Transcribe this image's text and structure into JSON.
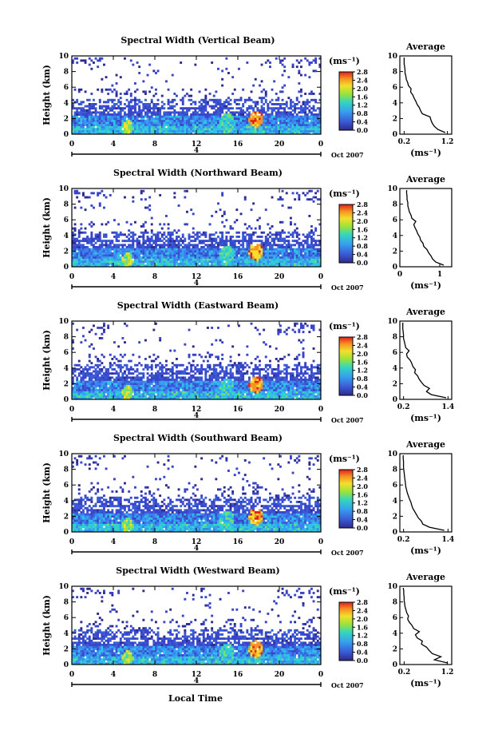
{
  "xlabel": "Local Time",
  "date_label": "Oct 2007",
  "unit_label": "(ms⁻¹)",
  "chart_data": [
    {
      "type": "heatmap",
      "title": "Spectral Width (Vertical Beam)",
      "ylabel": "Height (km)",
      "xlabel": "Local Time",
      "x_ticks": [
        "0",
        "4",
        "8",
        "12",
        "16",
        "20",
        "0"
      ],
      "y_ticks": [
        "0",
        "2",
        "4",
        "6",
        "8",
        "10"
      ],
      "day_label": "4",
      "xlim": [
        0,
        24
      ],
      "ylim": [
        0,
        10
      ],
      "colorbar": {
        "label": "(ms⁻¹)",
        "ticks": [
          "0.0",
          "0.4",
          "0.8",
          "1.2",
          "1.6",
          "2.0",
          "2.4",
          "2.8"
        ],
        "range": [
          0,
          2.8
        ]
      },
      "average_profile": {
        "title": "Average",
        "xlabel": "(ms⁻¹)",
        "x_ticks": [
          "0.2",
          "1.2"
        ],
        "xlim": [
          0.1,
          1.3
        ],
        "ylim": [
          0,
          10
        ],
        "height": [
          0.2,
          0.6,
          1.0,
          1.4,
          1.8,
          2.2,
          2.6,
          3.0,
          3.4,
          3.8,
          4.2,
          4.6,
          5.0,
          5.4,
          5.8,
          6.2,
          6.6,
          7.0,
          7.4,
          7.8,
          8.2,
          8.6,
          9.0,
          9.4,
          9.8
        ],
        "width": [
          1.15,
          0.98,
          0.9,
          0.85,
          0.82,
          0.8,
          0.62,
          0.58,
          0.55,
          0.5,
          0.47,
          0.43,
          0.4,
          0.35,
          0.36,
          0.3,
          0.28,
          0.25,
          0.24,
          0.22,
          0.22,
          0.21,
          0.2,
          0.2,
          0.2
        ]
      }
    },
    {
      "type": "heatmap",
      "title": "Spectral Width (Northward Beam)",
      "ylabel": "Height (km)",
      "xlabel": "Local Time",
      "x_ticks": [
        "0",
        "4",
        "8",
        "12",
        "16",
        "20",
        "0"
      ],
      "y_ticks": [
        "0",
        "2",
        "4",
        "6",
        "8",
        "10"
      ],
      "day_label": "4",
      "xlim": [
        0,
        24
      ],
      "ylim": [
        0,
        10
      ],
      "colorbar": {
        "label": "(ms⁻¹)",
        "ticks": [
          "0.0",
          "0.4",
          "0.8",
          "1.2",
          "1.6",
          "2.0",
          "2.4",
          "2.8"
        ],
        "range": [
          0,
          2.8
        ]
      },
      "average_profile": {
        "title": "Average",
        "xlabel": "(ms⁻¹)",
        "x_ticks": [
          "0",
          "1"
        ],
        "xlim": [
          0,
          1.3
        ],
        "ylim": [
          0,
          10
        ],
        "height": [
          0.2,
          0.6,
          1.0,
          1.4,
          1.8,
          2.2,
          2.6,
          3.0,
          3.4,
          3.8,
          4.2,
          4.6,
          5.0,
          5.4,
          5.8,
          6.2,
          6.6,
          7.0,
          7.4,
          7.8,
          8.2,
          8.6,
          9.0,
          9.4,
          9.8
        ],
        "width": [
          1.1,
          0.9,
          0.82,
          0.78,
          0.72,
          0.68,
          0.6,
          0.58,
          0.52,
          0.5,
          0.45,
          0.42,
          0.38,
          0.35,
          0.4,
          0.3,
          0.28,
          0.24,
          0.22,
          0.2,
          0.2,
          0.18,
          0.18,
          0.17,
          0.17
        ]
      }
    },
    {
      "type": "heatmap",
      "title": "Spectral Width (Eastward Beam)",
      "ylabel": "Height (km)",
      "xlabel": "Local Time",
      "x_ticks": [
        "0",
        "4",
        "8",
        "12",
        "16",
        "20",
        "0"
      ],
      "y_ticks": [
        "0",
        "2",
        "4",
        "6",
        "8",
        "10"
      ],
      "day_label": "4",
      "xlim": [
        0,
        24
      ],
      "ylim": [
        0,
        10
      ],
      "colorbar": {
        "label": "(ms⁻¹)",
        "ticks": [
          "0.0",
          "0.4",
          "0.8",
          "1.2",
          "1.6",
          "2.0",
          "2.4",
          "2.8"
        ],
        "range": [
          0,
          2.8
        ]
      },
      "average_profile": {
        "title": "Average",
        "xlabel": "(ms⁻¹)",
        "x_ticks": [
          "0.2",
          "1.4"
        ],
        "xlim": [
          0.1,
          1.5
        ],
        "ylim": [
          0,
          10
        ],
        "height": [
          0.2,
          0.6,
          1.0,
          1.4,
          1.8,
          2.2,
          2.6,
          3.0,
          3.4,
          3.8,
          4.2,
          4.6,
          5.0,
          5.4,
          5.8,
          6.2,
          6.6,
          7.0,
          7.4,
          7.8,
          8.2,
          8.6,
          9.0,
          9.4,
          9.8
        ],
        "width": [
          1.35,
          0.95,
          0.82,
          0.9,
          0.75,
          0.68,
          0.62,
          0.58,
          0.5,
          0.52,
          0.45,
          0.42,
          0.38,
          0.3,
          0.28,
          0.35,
          0.26,
          0.24,
          0.22,
          0.2,
          0.2,
          0.19,
          0.18,
          0.18,
          0.18
        ]
      }
    },
    {
      "type": "heatmap",
      "title": "Spectral Width (Southward Beam)",
      "ylabel": "Height (km)",
      "xlabel": "Local Time",
      "x_ticks": [
        "0",
        "4",
        "8",
        "12",
        "16",
        "20",
        "0"
      ],
      "y_ticks": [
        "0",
        "2",
        "4",
        "6",
        "8",
        "10"
      ],
      "day_label": "4",
      "xlim": [
        0,
        24
      ],
      "ylim": [
        0,
        10
      ],
      "colorbar": {
        "label": "(ms⁻¹)",
        "ticks": [
          "0.0",
          "0.4",
          "0.8",
          "1.2",
          "1.6",
          "2.0",
          "2.4",
          "2.8"
        ],
        "range": [
          0,
          2.8
        ]
      },
      "average_profile": {
        "title": "Average",
        "xlabel": "(ms⁻¹)",
        "x_ticks": [
          "0.2",
          "1.4"
        ],
        "xlim": [
          0.1,
          1.5
        ],
        "ylim": [
          0,
          10
        ],
        "height": [
          0.2,
          0.6,
          1.0,
          1.4,
          1.8,
          2.2,
          2.6,
          3.0,
          3.4,
          3.8,
          4.2,
          4.6,
          5.0,
          5.4,
          5.8,
          6.2,
          6.6,
          7.0,
          7.4,
          7.8,
          8.2,
          8.6,
          9.0,
          9.4,
          9.8
        ],
        "width": [
          1.3,
          0.9,
          0.72,
          0.68,
          0.6,
          0.55,
          0.5,
          0.45,
          0.42,
          0.4,
          0.36,
          0.33,
          0.3,
          0.28,
          0.26,
          0.25,
          0.24,
          0.23,
          0.22,
          0.21,
          0.2,
          0.2,
          0.2,
          0.19,
          0.19
        ]
      }
    },
    {
      "type": "heatmap",
      "title": "Spectral Width (Westward Beam)",
      "ylabel": "Height (km)",
      "xlabel": "Local Time",
      "x_ticks": [
        "0",
        "4",
        "8",
        "12",
        "16",
        "20",
        "0"
      ],
      "y_ticks": [
        "0",
        "2",
        "4",
        "6",
        "8",
        "10"
      ],
      "day_label": "4",
      "xlim": [
        0,
        24
      ],
      "ylim": [
        0,
        10
      ],
      "colorbar": {
        "label": "(ms⁻¹)",
        "ticks": [
          "0.0",
          "0.4",
          "0.8",
          "1.2",
          "1.6",
          "2.0",
          "2.4",
          "2.8"
        ],
        "range": [
          0,
          2.8
        ]
      },
      "average_profile": {
        "title": "Average",
        "xlabel": "(ms⁻¹)",
        "x_ticks": [
          "0.2",
          "1.2"
        ],
        "xlim": [
          0.1,
          1.3
        ],
        "ylim": [
          0,
          10
        ],
        "height": [
          0.2,
          0.6,
          1.0,
          1.4,
          1.8,
          2.2,
          2.6,
          3.0,
          3.4,
          3.8,
          4.2,
          4.6,
          5.0,
          5.4,
          5.8,
          6.2,
          6.6,
          7.0,
          7.4,
          7.8,
          8.2,
          8.6,
          9.0,
          9.4,
          9.8
        ],
        "width": [
          1.2,
          0.9,
          1.05,
          0.85,
          0.78,
          0.72,
          0.6,
          0.62,
          0.5,
          0.46,
          0.55,
          0.42,
          0.38,
          0.32,
          0.28,
          0.3,
          0.26,
          0.24,
          0.22,
          0.21,
          0.2,
          0.2,
          0.19,
          0.19,
          0.18
        ]
      }
    }
  ]
}
